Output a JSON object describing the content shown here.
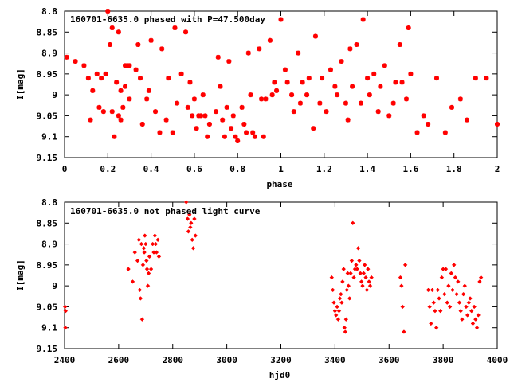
{
  "chart_data": [
    {
      "type": "scatter",
      "title": "160701-6635.0 phased with P=47.500day",
      "xlabel": "phase",
      "ylabel": "I[mag]",
      "xlim": [
        0,
        2
      ],
      "ylim": [
        9.15,
        8.8
      ],
      "y_inverted": true,
      "x_ticks": [
        "0",
        "0.2",
        "0.4",
        "0.6",
        "0.8",
        "1",
        "1.2",
        "1.4",
        "1.6",
        "1.8",
        "2"
      ],
      "y_ticks": [
        "8.8",
        "8.85",
        "8.9",
        "8.95",
        "9",
        "9.05",
        "9.1",
        "9.15"
      ],
      "grid": false,
      "color": "#ff0000",
      "marker": "star",
      "series": [
        {
          "x": [
            0.01,
            0.05,
            0.09,
            0.11,
            0.12,
            0.13,
            0.15,
            0.16,
            0.17,
            0.18,
            0.19,
            0.2,
            0.21,
            0.22,
            0.22,
            0.23,
            0.24,
            0.25,
            0.25,
            0.26,
            0.26,
            0.27,
            0.28,
            0.28,
            0.29,
            0.3,
            0.3,
            0.33,
            0.34,
            0.35,
            0.36,
            0.38,
            0.39,
            0.4,
            0.42,
            0.44,
            0.45,
            0.47,
            0.48,
            0.5,
            0.51,
            0.52,
            0.54,
            0.56,
            0.57,
            0.58,
            0.59,
            0.6,
            0.61,
            0.62,
            0.63,
            0.64,
            0.65,
            0.66,
            0.67,
            0.7,
            0.71,
            0.72,
            0.73,
            0.74,
            0.75,
            0.76,
            0.77,
            0.78,
            0.79,
            0.8,
            0.82,
            0.83,
            0.84,
            0.85,
            0.86,
            0.87,
            0.88,
            0.9,
            0.91,
            0.92,
            0.93,
            0.95,
            0.96,
            0.97,
            0.98,
            1.0,
            1.02,
            1.03,
            1.05,
            1.06,
            1.08,
            1.09,
            1.1,
            1.12,
            1.13,
            1.15,
            1.16,
            1.18,
            1.19,
            1.21,
            1.23,
            1.25,
            1.26,
            1.28,
            1.3,
            1.31,
            1.32,
            1.33,
            1.35,
            1.37,
            1.38,
            1.4,
            1.41,
            1.43,
            1.45,
            1.46,
            1.48,
            1.5,
            1.52,
            1.53,
            1.55,
            1.56,
            1.58,
            1.59,
            1.6,
            1.63,
            1.66,
            1.68,
            1.72,
            1.76,
            1.79,
            1.83,
            1.86,
            1.9,
            1.95,
            2.0
          ],
          "y": [
            8.91,
            8.92,
            8.93,
            8.96,
            9.06,
            8.99,
            8.95,
            9.03,
            8.96,
            9.04,
            8.95,
            8.8,
            8.88,
            9.04,
            8.84,
            9.1,
            8.97,
            8.85,
            9.05,
            8.99,
            9.06,
            9.03,
            8.93,
            8.98,
            8.93,
            9.01,
            8.93,
            8.94,
            8.88,
            8.96,
            9.07,
            9.01,
            8.99,
            8.87,
            9.04,
            9.09,
            8.89,
            9.06,
            8.96,
            9.09,
            8.84,
            9.02,
            8.95,
            8.85,
            9.03,
            8.97,
            9.05,
            9.01,
            9.08,
            9.05,
            9.05,
            9.0,
            9.05,
            9.1,
            9.07,
            9.04,
            8.91,
            8.98,
            9.06,
            9.1,
            9.03,
            8.92,
            9.08,
            9.05,
            9.1,
            9.11,
            9.03,
            9.07,
            9.09,
            8.9,
            9.0,
            9.09,
            9.1,
            8.89,
            9.01,
            9.1,
            9.01,
            8.87,
            9.0,
            8.97,
            8.99,
            8.82,
            8.94,
            8.97,
            9.0,
            9.04,
            8.9,
            9.02,
            8.97,
            9.0,
            8.96,
            9.08,
            8.86,
            9.02,
            8.96,
            9.04,
            8.94,
            8.98,
            9.0,
            8.92,
            9.02,
            9.06,
            8.89,
            8.98,
            8.88,
            9.02,
            8.82,
            8.96,
            9.0,
            8.95,
            9.04,
            8.98,
            8.93,
            9.05,
            9.02,
            8.97,
            8.88,
            8.97,
            9.01,
            8.84,
            8.95,
            9.09,
            9.05,
            9.07,
            8.96,
            9.09,
            9.03,
            9.01,
            9.06,
            8.96,
            8.96,
            9.07
          ]
        }
      ]
    },
    {
      "type": "scatter",
      "title": "160701-6635.0 not phased light curve",
      "xlabel": "hjd0",
      "ylabel": "I[mag]",
      "xlim": [
        2400,
        4000
      ],
      "ylim": [
        9.15,
        8.8
      ],
      "y_inverted": true,
      "x_ticks": [
        "2400",
        "2600",
        "2800",
        "3000",
        "3200",
        "3400",
        "3600",
        "3800",
        "4000"
      ],
      "y_ticks": [
        "8.8",
        "8.85",
        "8.9",
        "8.95",
        "9",
        "9.05",
        "9.1",
        "9.15"
      ],
      "grid": false,
      "color": "#ff0000",
      "marker": "diamond",
      "series": [
        {
          "x": [
            2402,
            2403,
            2404,
            2636,
            2652,
            2660,
            2670,
            2675,
            2678,
            2681,
            2684,
            2687,
            2690,
            2693,
            2695,
            2697,
            2700,
            2703,
            2705,
            2708,
            2711,
            2714,
            2720,
            2726,
            2730,
            2734,
            2737,
            2740,
            2745,
            2749,
            2850,
            2855,
            2858,
            2862,
            2865,
            2868,
            2872,
            2876,
            2880,
            2884,
            3388,
            3392,
            3396,
            3400,
            3404,
            3408,
            3412,
            3415,
            3418,
            3422,
            3425,
            3428,
            3432,
            3435,
            3438,
            3441,
            3444,
            3447,
            3450,
            3454,
            3458,
            3462,
            3466,
            3470,
            3474,
            3478,
            3482,
            3486,
            3490,
            3494,
            3498,
            3502,
            3506,
            3510,
            3514,
            3518,
            3522,
            3526,
            3530,
            3535,
            3642,
            3646,
            3650,
            3655,
            3660,
            3745,
            3750,
            3755,
            3760,
            3765,
            3770,
            3775,
            3780,
            3785,
            3790,
            3795,
            3800,
            3805,
            3810,
            3815,
            3820,
            3825,
            3830,
            3835,
            3840,
            3845,
            3850,
            3855,
            3860,
            3865,
            3870,
            3875,
            3880,
            3885,
            3890,
            3895,
            3900,
            3905,
            3910,
            3915,
            3920,
            3925,
            3930,
            3935,
            3940
          ],
          "y": [
            9.05,
            9.1,
            9.06,
            8.96,
            8.99,
            8.92,
            8.94,
            8.89,
            9.01,
            9.03,
            8.9,
            9.08,
            8.95,
            8.91,
            8.92,
            8.88,
            8.9,
            8.94,
            8.96,
            9.0,
            8.97,
            8.93,
            8.96,
            8.9,
            8.92,
            8.88,
            8.9,
            8.92,
            8.89,
            8.93,
            8.8,
            8.84,
            8.87,
            8.83,
            8.86,
            8.85,
            8.89,
            8.91,
            8.84,
            8.88,
            8.98,
            9.01,
            9.04,
            9.06,
            9.07,
            9.05,
            9.08,
            9.06,
            9.03,
            9.02,
            9.04,
            8.99,
            8.96,
            9.1,
            9.11,
            9.08,
            9.01,
            8.97,
            9.0,
            9.03,
            8.97,
            8.94,
            8.85,
            8.98,
            8.96,
            8.95,
            8.96,
            8.91,
            8.94,
            8.97,
            8.99,
            9.0,
            8.97,
            8.95,
            8.98,
            9.01,
            8.96,
            8.99,
            9.0,
            8.98,
            8.98,
            9.0,
            9.05,
            9.11,
            8.95,
            9.01,
            9.05,
            9.09,
            9.01,
            9.04,
            9.06,
            9.1,
            9.01,
            9.03,
            9.06,
            8.98,
            8.96,
            9.02,
            8.96,
            9.04,
            9.0,
            9.05,
            8.97,
            9.01,
            8.95,
            8.98,
            9.02,
            8.99,
            9.04,
            9.06,
            9.08,
            9.02,
            9.0,
            9.05,
            9.07,
            9.04,
            9.03,
            9.06,
            9.09,
            9.05,
            9.08,
            9.1,
            9.07,
            8.99,
            8.98
          ]
        }
      ]
    }
  ]
}
